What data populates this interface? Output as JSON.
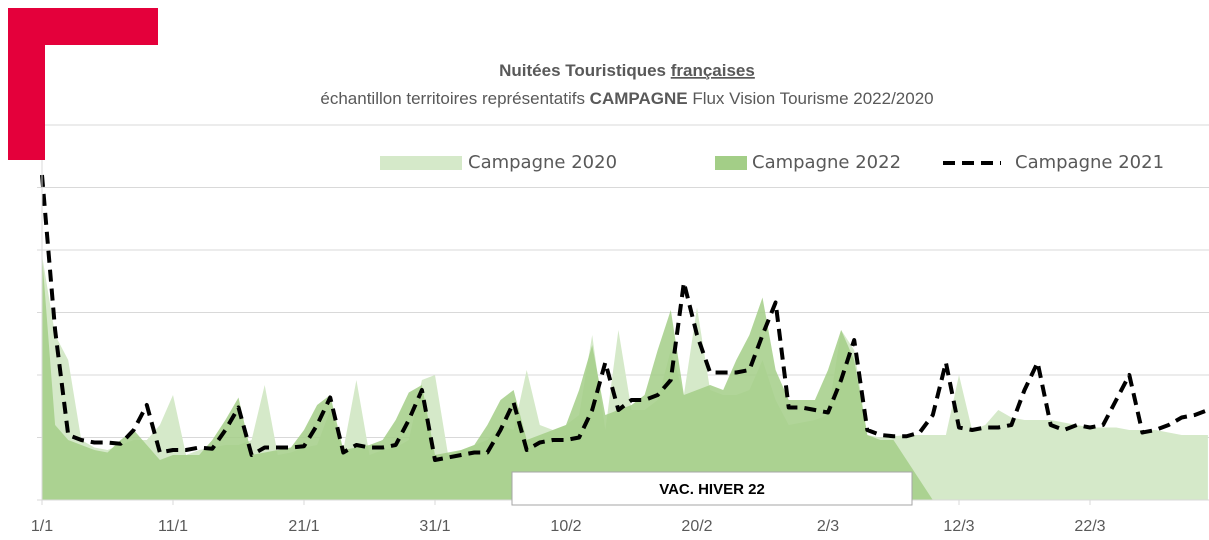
{
  "chart_data": {
    "type": "area",
    "title": "Nuitées Touristiques ",
    "title_underlined": "françaises",
    "subtitle": [
      "échantillon territoires représentatifs ",
      "CAMPAGNE",
      " Flux Vision Tourisme 2022/2020"
    ],
    "annotation": "VAC. HIVER 22",
    "categories": [
      "1/1",
      null,
      null,
      null,
      null,
      null,
      null,
      null,
      null,
      null,
      "11/1",
      null,
      null,
      null,
      null,
      null,
      null,
      null,
      null,
      null,
      "21/1",
      null,
      null,
      null,
      null,
      null,
      null,
      null,
      null,
      null,
      "31/1",
      null,
      null,
      null,
      null,
      null,
      null,
      null,
      null,
      null,
      "10/2",
      null,
      null,
      null,
      null,
      null,
      null,
      null,
      null,
      null,
      "20/2",
      null,
      null,
      null,
      null,
      null,
      null,
      null,
      null,
      null,
      "2/3",
      null,
      null,
      null,
      null,
      null,
      null,
      null,
      null,
      null,
      "12/3",
      null,
      null,
      null,
      null,
      null,
      null,
      null,
      null,
      null,
      "22/3",
      null,
      null,
      null,
      null,
      null,
      null,
      null,
      null,
      null
    ],
    "ylim": [
      0,
      300
    ],
    "yticks": [
      0,
      50,
      100,
      150,
      200,
      250,
      300
    ],
    "show_ytick_labels": false,
    "grid": true,
    "series": [
      {
        "name": "Campagne 2020",
        "type": "area",
        "color": "#d5e9c9",
        "values": [
          196,
          132,
          112,
          48,
          42,
          40,
          44,
          48,
          48,
          60,
          84,
          36,
          40,
          42,
          44,
          44,
          48,
          92,
          36,
          38,
          42,
          44,
          72,
          40,
          96,
          36,
          40,
          42,
          48,
          96,
          100,
          36,
          40,
          44,
          48,
          60,
          56,
          104,
          60,
          56,
          60,
          68,
          132,
          56,
          136,
          72,
          72,
          80,
          120,
          84,
          154,
          88,
          84,
          84,
          88,
          112,
          80,
          60,
          62,
          64,
          68,
          136,
          120,
          52,
          50,
          51,
          52,
          52,
          52,
          52,
          100,
          56,
          60,
          72,
          66,
          64,
          64,
          64,
          62,
          60,
          58,
          58,
          58,
          56,
          56,
          56,
          54,
          52,
          52,
          52
        ]
      },
      {
        "name": "Campagne 2022",
        "type": "area",
        "color": "#a3ce87",
        "values": [
          196,
          60,
          48,
          44,
          40,
          38,
          48,
          56,
          44,
          32,
          36,
          36,
          36,
          48,
          64,
          82,
          36,
          38,
          40,
          42,
          56,
          76,
          84,
          40,
          42,
          44,
          48,
          64,
          86,
          92,
          36,
          38,
          40,
          44,
          60,
          80,
          88,
          48,
          52,
          56,
          60,
          88,
          124,
          68,
          72,
          76,
          84,
          120,
          152,
          84,
          88,
          92,
          88,
          112,
          132,
          162,
          104,
          80,
          80,
          80,
          104,
          136,
          112,
          52,
          48,
          48,
          32,
          16,
          0,
          null,
          null,
          null,
          null,
          null,
          null,
          null,
          null,
          null,
          null,
          null,
          null,
          null,
          null,
          null,
          null,
          null,
          null,
          null,
          null,
          null
        ]
      },
      {
        "name": "Campagne 2021",
        "type": "line",
        "dash": true,
        "color": "#000000",
        "values": [
          260,
          136,
          52,
          48,
          46,
          46,
          45,
          56,
          76,
          38,
          40,
          40,
          42,
          41,
          56,
          74,
          36,
          42,
          42,
          42,
          43,
          60,
          82,
          38,
          44,
          42,
          42,
          44,
          64,
          88,
          32,
          34,
          36,
          38,
          38,
          56,
          78,
          40,
          46,
          48,
          48,
          50,
          72,
          110,
          72,
          80,
          80,
          84,
          96,
          174,
          132,
          102,
          102,
          102,
          104,
          132,
          158,
          74,
          74,
          72,
          70,
          96,
          128,
          56,
          52,
          51,
          51,
          54,
          68,
          110,
          58,
          56,
          58,
          58,
          60,
          88,
          110,
          60,
          56,
          60,
          58,
          60,
          80,
          100,
          54,
          56,
          60,
          66,
          68,
          72
        ]
      }
    ]
  }
}
